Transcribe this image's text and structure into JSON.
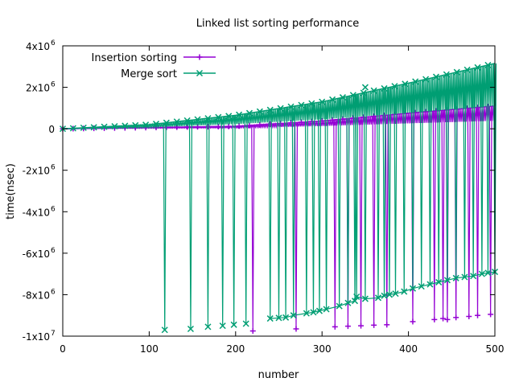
{
  "chart_data": {
    "type": "line",
    "title": "Linked list sorting performance",
    "xlabel": "number",
    "ylabel": "time(nsec)",
    "xlim": [
      0,
      500
    ],
    "ylim": [
      -10000000,
      4000000
    ],
    "x_ticks": [
      0,
      100,
      200,
      300,
      400,
      500
    ],
    "y_ticks": [
      {
        "value": 4000000,
        "base": "4x10",
        "exp": "6"
      },
      {
        "value": 2000000,
        "base": "2x10",
        "exp": "6"
      },
      {
        "value": 0,
        "base": "0",
        "exp": ""
      },
      {
        "value": -2000000,
        "base": "-2x10",
        "exp": "6"
      },
      {
        "value": -4000000,
        "base": "-4x10",
        "exp": "6"
      },
      {
        "value": -6000000,
        "base": "-6x10",
        "exp": "6"
      },
      {
        "value": -8000000,
        "base": "-8x10",
        "exp": "6"
      },
      {
        "value": -10000000,
        "base": "-1x10",
        "exp": "7"
      }
    ],
    "grid": false,
    "legend_position": "top-left",
    "series": [
      {
        "name": "Insertion sorting",
        "color": "#9400d3",
        "marker": "plus",
        "upper": [
          [
            0,
            0
          ],
          [
            100,
            60000
          ],
          [
            200,
            120000
          ],
          [
            300,
            380000
          ],
          [
            400,
            750000
          ],
          [
            500,
            1100000
          ]
        ],
        "drops": [
          [
            220,
            -9750000
          ],
          [
            270,
            -9650000
          ],
          [
            315,
            -9550000
          ],
          [
            330,
            -9520000
          ],
          [
            345,
            -9500000
          ],
          [
            360,
            -9470000
          ],
          [
            375,
            -9450000
          ],
          [
            405,
            -9300000
          ],
          [
            430,
            -9200000
          ],
          [
            440,
            -9150000
          ],
          [
            445,
            -9200000
          ],
          [
            455,
            -9100000
          ],
          [
            470,
            -9050000
          ],
          [
            480,
            -9000000
          ],
          [
            495,
            -8950000
          ]
        ]
      },
      {
        "name": "Merge sort",
        "color": "#009e73",
        "marker": "cross",
        "upper": [
          [
            0,
            0
          ],
          [
            100,
            200000
          ],
          [
            200,
            650000
          ],
          [
            300,
            1300000
          ],
          [
            400,
            2200000
          ],
          [
            500,
            3150000
          ]
        ],
        "drops": [
          [
            118,
            -9700000
          ],
          [
            148,
            -9650000
          ],
          [
            168,
            -9550000
          ],
          [
            185,
            -9500000
          ],
          [
            198,
            -9450000
          ],
          [
            212,
            -9400000
          ],
          [
            240,
            -9150000
          ],
          [
            250,
            -9120000
          ],
          [
            258,
            -9100000
          ],
          [
            267,
            -9000000
          ],
          [
            282,
            -8900000
          ],
          [
            290,
            -8850000
          ],
          [
            297,
            -8780000
          ],
          [
            305,
            -8700000
          ],
          [
            320,
            -8550000
          ],
          [
            330,
            -8400000
          ],
          [
            338,
            -8300000
          ],
          [
            340,
            -8100000
          ],
          [
            350,
            -8200000
          ],
          [
            365,
            -8150000
          ],
          [
            372,
            -8050000
          ],
          [
            378,
            -8000000
          ],
          [
            385,
            -7950000
          ],
          [
            395,
            -7850000
          ],
          [
            405,
            -7700000
          ],
          [
            415,
            -7600000
          ],
          [
            425,
            -7500000
          ],
          [
            435,
            -7400000
          ],
          [
            445,
            -7300000
          ],
          [
            455,
            -7200000
          ],
          [
            465,
            -7150000
          ],
          [
            475,
            -7100000
          ],
          [
            485,
            -7000000
          ],
          [
            492,
            -6950000
          ],
          [
            500,
            -6900000
          ]
        ],
        "peak": [
          350,
          2000000
        ]
      }
    ]
  }
}
